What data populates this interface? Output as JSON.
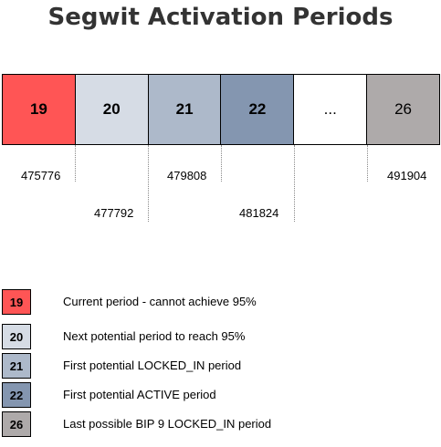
{
  "title": "Segwit Activation Periods",
  "periods": [
    {
      "label": "19",
      "color": "#ff5555",
      "bold": true
    },
    {
      "label": "20",
      "color": "#d6dce5",
      "bold": true
    },
    {
      "label": "21",
      "color": "#adb9ca",
      "bold": true
    },
    {
      "label": "22",
      "color": "#8496b0",
      "bold": true
    },
    {
      "label": "...",
      "color": "#ffffff",
      "bold": false
    },
    {
      "label": "26",
      "color": "#aeaaaa",
      "bold": false
    }
  ],
  "block_heights": [
    "475776",
    "477792",
    "479808",
    "481824",
    "491904"
  ],
  "legend": [
    {
      "label": "19",
      "text": "Current period - cannot achieve 95%",
      "color": "#ff5555"
    },
    {
      "label": "20",
      "text": "Next potential period to reach 95%",
      "color": "#d6dce5"
    },
    {
      "label": "21",
      "text": "First potential LOCKED_IN period",
      "color": "#adb9ca"
    },
    {
      "label": "22",
      "text": "First potential ACTIVE period",
      "color": "#8496b0"
    },
    {
      "label": "26",
      "text": "Last possible BIP 9 LOCKED_IN period",
      "color": "#aeaaaa"
    }
  ]
}
